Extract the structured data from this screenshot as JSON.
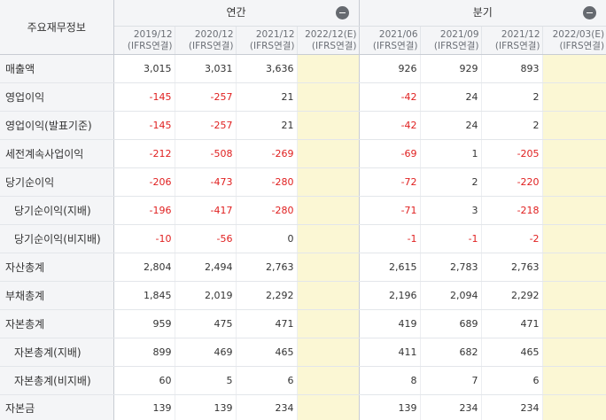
{
  "header": {
    "corner_label": "주요재무정보",
    "annual_label": "연간",
    "quarterly_label": "분기",
    "annual_periods": [
      {
        "date": "2019/12",
        "basis": "(IFRS연결)"
      },
      {
        "date": "2020/12",
        "basis": "(IFRS연결)"
      },
      {
        "date": "2021/12",
        "basis": "(IFRS연결)"
      },
      {
        "date": "2022/12(E)",
        "basis": "(IFRS연결)"
      }
    ],
    "quarter_periods": [
      {
        "date": "2021/06",
        "basis": "(IFRS연결)"
      },
      {
        "date": "2021/09",
        "basis": "(IFRS연결)"
      },
      {
        "date": "2021/12",
        "basis": "(IFRS연결)"
      },
      {
        "date": "2022/03(E)",
        "basis": "(IFRS연결)"
      }
    ]
  },
  "rows": [
    {
      "label": "매출액",
      "annual": [
        "3,015",
        "3,031",
        "3,636",
        ""
      ],
      "quarter": [
        "926",
        "929",
        "893",
        ""
      ]
    },
    {
      "label": "영업이익",
      "annual": [
        "-145",
        "-257",
        "21",
        ""
      ],
      "quarter": [
        "-42",
        "24",
        "2",
        ""
      ]
    },
    {
      "label": "영업이익(발표기준)",
      "annual": [
        "-145",
        "-257",
        "21",
        ""
      ],
      "quarter": [
        "-42",
        "24",
        "2",
        ""
      ]
    },
    {
      "label": "세전계속사업이익",
      "annual": [
        "-212",
        "-508",
        "-269",
        ""
      ],
      "quarter": [
        "-69",
        "1",
        "-205",
        ""
      ]
    },
    {
      "label": "당기순이익",
      "annual": [
        "-206",
        "-473",
        "-280",
        ""
      ],
      "quarter": [
        "-72",
        "2",
        "-220",
        ""
      ]
    },
    {
      "label": "당기순이익(지배)",
      "annual": [
        "-196",
        "-417",
        "-280",
        ""
      ],
      "quarter": [
        "-71",
        "3",
        "-218",
        ""
      ]
    },
    {
      "label": "당기순이익(비지배)",
      "annual": [
        "-10",
        "-56",
        "0",
        ""
      ],
      "quarter": [
        "-1",
        "-1",
        "-2",
        ""
      ]
    },
    {
      "label": "자산총계",
      "annual": [
        "2,804",
        "2,494",
        "2,763",
        ""
      ],
      "quarter": [
        "2,615",
        "2,783",
        "2,763",
        ""
      ]
    },
    {
      "label": "부채총계",
      "annual": [
        "1,845",
        "2,019",
        "2,292",
        ""
      ],
      "quarter": [
        "2,196",
        "2,094",
        "2,292",
        ""
      ]
    },
    {
      "label": "자본총계",
      "annual": [
        "959",
        "475",
        "471",
        ""
      ],
      "quarter": [
        "419",
        "689",
        "471",
        ""
      ]
    },
    {
      "label": "자본총계(지배)",
      "annual": [
        "899",
        "469",
        "465",
        ""
      ],
      "quarter": [
        "411",
        "682",
        "465",
        ""
      ]
    },
    {
      "label": "자본총계(비지배)",
      "annual": [
        "60",
        "5",
        "6",
        ""
      ],
      "quarter": [
        "8",
        "7",
        "6",
        ""
      ]
    },
    {
      "label": "자본금",
      "annual": [
        "139",
        "139",
        "234",
        ""
      ],
      "quarter": [
        "139",
        "234",
        "234",
        ""
      ]
    }
  ],
  "colors": {
    "negative": "#e02020",
    "estimate_bg": "#fbf7d4",
    "header_bg": "#f4f5f7"
  }
}
